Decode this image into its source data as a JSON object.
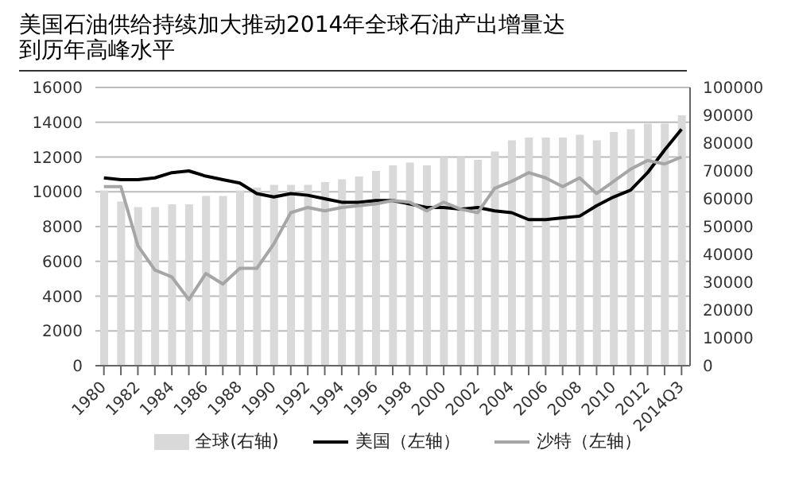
{
  "chart_data": {
    "type": "line",
    "title": "美国石油供给持续加大推动2014年全球石油产出增量达到历年高峰水平",
    "categories": [
      "1980",
      null,
      "1982",
      null,
      "1984",
      null,
      "1986",
      null,
      "1988",
      null,
      "1990",
      null,
      "1992",
      null,
      "1994",
      null,
      "1996",
      null,
      "1998",
      null,
      "2000",
      null,
      "2002",
      null,
      "2004",
      null,
      "2006",
      null,
      "2008",
      null,
      "2010",
      null,
      "2012",
      null,
      "2014Q3"
    ],
    "series": [
      {
        "name": "全球(右轴)",
        "type": "bar",
        "axis": "y2",
        "color": "#d9d9d9",
        "values": [
          63000,
          59000,
          57000,
          57000,
          58000,
          58000,
          61000,
          61000,
          63000,
          64000,
          65000,
          65000,
          65000,
          66000,
          67000,
          68000,
          70000,
          72000,
          73000,
          72000,
          75000,
          75000,
          74000,
          77000,
          81000,
          82000,
          82000,
          82000,
          83000,
          81000,
          84000,
          85000,
          87000,
          87000,
          90000
        ]
      },
      {
        "name": "美国（左轴）",
        "color": "#000000",
        "values": [
          10800,
          10700,
          10700,
          10800,
          11100,
          11200,
          10900,
          10700,
          10500,
          9900,
          9700,
          9900,
          9800,
          9600,
          9400,
          9400,
          9500,
          9500,
          9300,
          9100,
          9100,
          9000,
          9100,
          8900,
          8800,
          8400,
          8400,
          8500,
          8600,
          9200,
          9700,
          10100,
          11100,
          12400,
          13600
        ]
      },
      {
        "name": "沙特（左轴）",
        "color": "#a6a6a6",
        "values": [
          10300,
          10300,
          6900,
          5500,
          5100,
          3800,
          5300,
          4700,
          5600,
          5600,
          7000,
          8800,
          9100,
          8900,
          9100,
          9200,
          9300,
          9500,
          9400,
          8900,
          9400,
          9000,
          8800,
          10200,
          10600,
          11100,
          10800,
          10300,
          10800,
          9900,
          10600,
          11300,
          11800,
          11600,
          12000
        ]
      }
    ],
    "ylim": [
      0,
      16000
    ],
    "yticks": [
      0,
      2000,
      4000,
      6000,
      8000,
      10000,
      12000,
      14000,
      16000
    ],
    "y2lim": [
      0,
      100000
    ],
    "y2ticks": [
      0,
      10000,
      20000,
      30000,
      40000,
      50000,
      60000,
      70000,
      80000,
      90000,
      100000
    ],
    "grid": "y",
    "legend": "bottom",
    "marker": "none",
    "line_style": "solid"
  }
}
